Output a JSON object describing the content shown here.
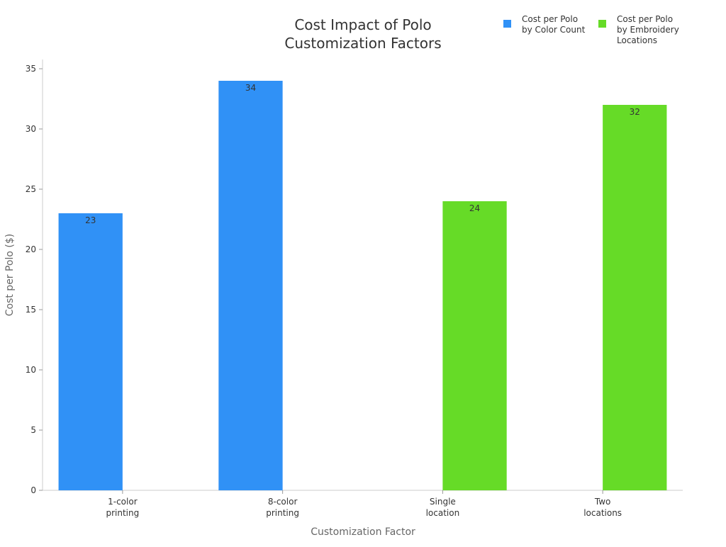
{
  "chart_data": {
    "type": "bar",
    "title_lines": [
      "Cost Impact of Polo",
      "Customization Factors"
    ],
    "xlabel": "Customization Factor",
    "ylabel": "Cost per Polo ($)",
    "ylim": [
      0,
      35
    ],
    "yticks": [
      0,
      5,
      10,
      15,
      20,
      25,
      30,
      35
    ],
    "categories": [
      [
        "1-color",
        "printing"
      ],
      [
        "8-color",
        "printing"
      ],
      [
        "Single",
        "location"
      ],
      [
        "Two",
        "locations"
      ]
    ],
    "series": [
      {
        "name_lines": [
          "Cost per Polo",
          "by Color Count"
        ],
        "color": "#3091f6",
        "values": [
          23,
          34,
          null,
          null
        ]
      },
      {
        "name_lines": [
          "Cost per Polo",
          "by Embroidery",
          "Locations"
        ],
        "color": "#66db27",
        "values": [
          null,
          null,
          24,
          32
        ]
      }
    ],
    "grid": false,
    "legend_position": "top-right"
  }
}
